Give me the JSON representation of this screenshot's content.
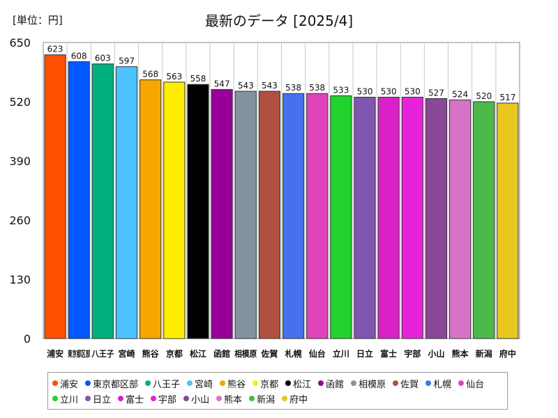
{
  "unit_label": "[単位：円]",
  "chart_data": {
    "type": "bar",
    "title": "最新のデータ [2025/4]",
    "ylim": [
      0,
      650
    ],
    "yticks": [
      0,
      130,
      260,
      390,
      520,
      650
    ],
    "grid": false,
    "legend_position": "bottom",
    "categories": [
      "浦安",
      "東京都区部",
      "八王子",
      "宮崎",
      "熊谷",
      "京都",
      "松江",
      "函館",
      "相模原",
      "佐賀",
      "札幌",
      "仙台",
      "立川",
      "日立",
      "富士",
      "宇部",
      "小山",
      "熊本",
      "新潟",
      "府中"
    ],
    "values": [
      623,
      608,
      603,
      597,
      568,
      563,
      558,
      547,
      543,
      543,
      538,
      538,
      533,
      530,
      530,
      530,
      527,
      524,
      520,
      517
    ],
    "colors": [
      "#ff4f00",
      "#005aff",
      "#00b17e",
      "#4cc3ff",
      "#f5a700",
      "#ffee00",
      "#000000",
      "#990099",
      "#84919e",
      "#b05040",
      "#4670ee",
      "#e044b8",
      "#22d22e",
      "#8056b0",
      "#d822c8",
      "#e822d8",
      "#8a4898",
      "#d673c8",
      "#4cb848",
      "#e8c820"
    ]
  }
}
